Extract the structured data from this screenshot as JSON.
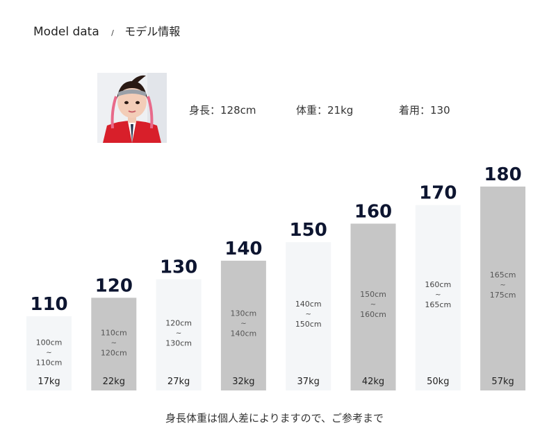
{
  "header": {
    "title": "Model data",
    "separator": "/",
    "subtitle": "モデル情報"
  },
  "model": {
    "height_label": "身長：128cm",
    "weight_label": "体重：21kg",
    "size_label": "着用：130"
  },
  "colors": {
    "light_bar": "#f4f6f8",
    "dark_bar": "#c6c6c6",
    "label": "#0d1530"
  },
  "chart_data": {
    "type": "bar",
    "title": "",
    "xlabel": "",
    "ylabel": "",
    "categories": [
      "110",
      "120",
      "130",
      "140",
      "150",
      "160",
      "170",
      "180"
    ],
    "values": [
      110,
      120,
      130,
      140,
      150,
      160,
      170,
      180
    ],
    "height_ranges": [
      [
        "100cm",
        "110cm"
      ],
      [
        "110cm",
        "120cm"
      ],
      [
        "120cm",
        "130cm"
      ],
      [
        "130cm",
        "140cm"
      ],
      [
        "140cm",
        "150cm"
      ],
      [
        "150cm",
        "160cm"
      ],
      [
        "160cm",
        "165cm"
      ],
      [
        "165cm",
        "175cm"
      ]
    ],
    "range_separator": "~",
    "weights": [
      "17kg",
      "22kg",
      "27kg",
      "32kg",
      "37kg",
      "42kg",
      "50kg",
      "57kg"
    ],
    "ylim": [
      70,
      180
    ],
    "grid": false,
    "legend": "none"
  },
  "footer": {
    "note": "身長体重は個人差によりますので、ご参考まで"
  }
}
